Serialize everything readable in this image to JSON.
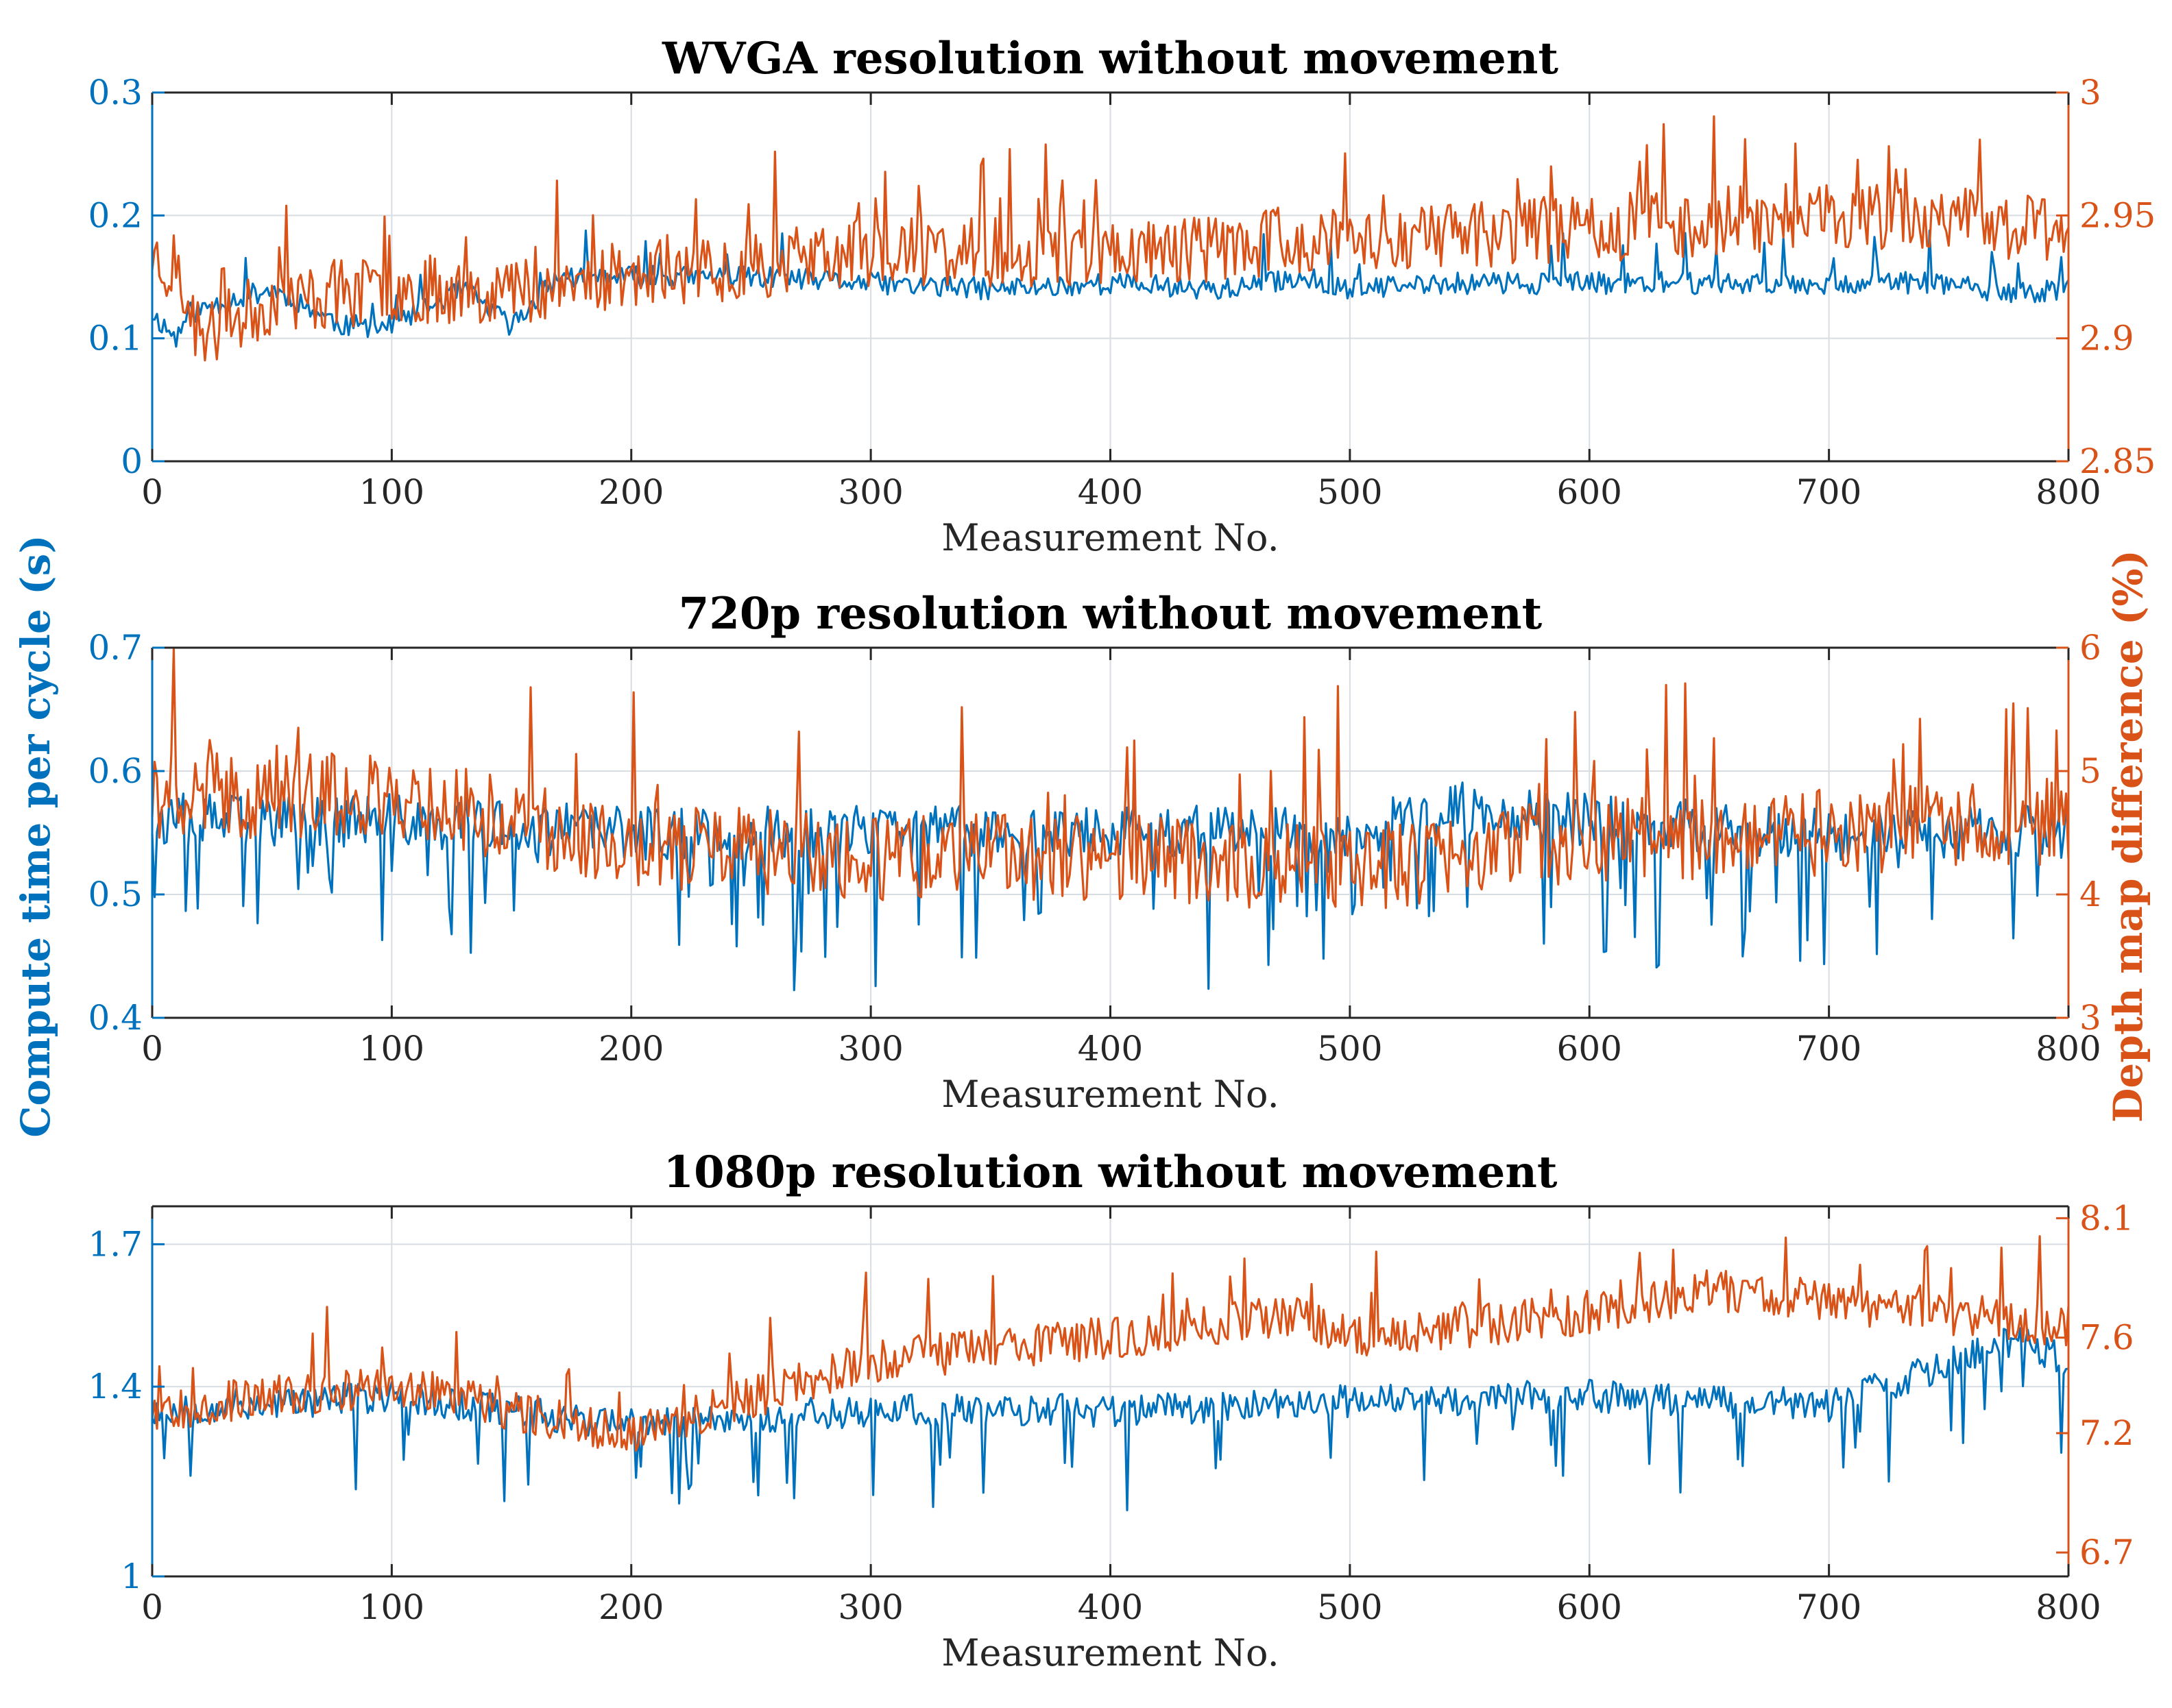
{
  "colors": {
    "left": "#0072BD",
    "right": "#D95319",
    "axis": "#262626",
    "grid": "#d7dde3",
    "title": "#000000"
  },
  "shared": {
    "ylabel_left": "Compute time per cycle (s)",
    "ylabel_right": "Depth map difference (%)"
  },
  "chart_data": [
    {
      "type": "line",
      "title": "WVGA resolution without movement",
      "xlabel": "Measurement No.",
      "xlim": [
        0,
        800
      ],
      "x_ticks": [
        0,
        100,
        200,
        300,
        400,
        500,
        600,
        700,
        800
      ],
      "y_left_lim": [
        0,
        0.3
      ],
      "y_left_ticks": [
        0,
        0.1,
        0.2,
        0.3
      ],
      "y_right_lim": [
        2.85,
        3.0
      ],
      "y_right_ticks": [
        2.85,
        2.9,
        2.95,
        3.0
      ],
      "grid": true,
      "series": [
        {
          "axis": "left",
          "anchors_x": [
            0,
            10,
            15,
            30,
            50,
            80,
            100,
            130,
            150,
            170,
            200,
            250,
            300,
            350,
            400,
            450,
            480,
            500,
            550,
            600,
            700,
            750,
            770,
            800
          ],
          "anchors_y": [
            0.12,
            0.1,
            0.12,
            0.13,
            0.14,
            0.11,
            0.11,
            0.14,
            0.11,
            0.15,
            0.15,
            0.15,
            0.145,
            0.14,
            0.145,
            0.14,
            0.15,
            0.14,
            0.145,
            0.145,
            0.145,
            0.145,
            0.135,
            0.14
          ],
          "noise": 0.009,
          "spikes": 0.04,
          "spike_rate": 0.03,
          "seed": 11
        },
        {
          "axis": "right",
          "anchors_x": [
            0,
            10,
            20,
            50,
            100,
            150,
            200,
            250,
            300,
            400,
            500,
            600,
            700,
            800
          ],
          "anchors_y": [
            2.935,
            2.925,
            2.9,
            2.915,
            2.92,
            2.92,
            2.925,
            2.93,
            2.935,
            2.935,
            2.94,
            2.945,
            2.95,
            2.945
          ],
          "noise": 0.014,
          "spikes": 0.035,
          "spike_rate": 0.06,
          "seed": 23
        }
      ]
    },
    {
      "type": "line",
      "title": "720p resolution without movement",
      "xlabel": "Measurement No.",
      "xlim": [
        0,
        800
      ],
      "x_ticks": [
        0,
        100,
        200,
        300,
        400,
        500,
        600,
        700,
        800
      ],
      "y_left_lim": [
        0.4,
        0.7
      ],
      "y_left_ticks": [
        0.4,
        0.5,
        0.6,
        0.7
      ],
      "y_right_lim": [
        3,
        6
      ],
      "y_right_ticks": [
        3,
        4,
        5,
        6
      ],
      "grid": true,
      "series": [
        {
          "axis": "left",
          "anchors_x": [
            0,
            100,
            200,
            300,
            400,
            500,
            550,
            600,
            700,
            800
          ],
          "anchors_y": [
            0.56,
            0.56,
            0.55,
            0.55,
            0.55,
            0.55,
            0.57,
            0.56,
            0.55,
            0.55
          ],
          "noise": 0.022,
          "spikes": -0.11,
          "spike_rate": 0.09,
          "seed": 37
        },
        {
          "axis": "right",
          "anchors_x": [
            0,
            100,
            200,
            300,
            400,
            500,
            600,
            700,
            800
          ],
          "anchors_y": [
            4.8,
            4.8,
            4.4,
            4.3,
            4.3,
            4.2,
            4.45,
            4.5,
            4.6
          ],
          "noise": 0.35,
          "spikes": 1.2,
          "spike_rate": 0.05,
          "seed": 41
        }
      ]
    },
    {
      "type": "line",
      "title": "1080p resolution without movement",
      "xlabel": "Measurement No.",
      "xlim": [
        0,
        800
      ],
      "x_ticks": [
        0,
        100,
        200,
        300,
        400,
        500,
        600,
        700,
        800
      ],
      "y_left_lim": [
        1,
        1.78
      ],
      "y_left_ticks": [
        1,
        1.4,
        1.7
      ],
      "y_right_lim": [
        6.6,
        8.15
      ],
      "y_right_ticks": [
        6.7,
        7.2,
        7.6,
        8.1
      ],
      "grid": true,
      "series": [
        {
          "axis": "left",
          "anchors_x": [
            0,
            100,
            200,
            300,
            400,
            500,
            600,
            700,
            780,
            800
          ],
          "anchors_y": [
            1.35,
            1.38,
            1.32,
            1.35,
            1.35,
            1.37,
            1.38,
            1.36,
            1.5,
            1.45
          ],
          "noise": 0.035,
          "spikes": -0.2,
          "spike_rate": 0.08,
          "seed": 53
        },
        {
          "axis": "right",
          "anchors_x": [
            0,
            100,
            200,
            300,
            400,
            480,
            500,
            600,
            650,
            700,
            800
          ],
          "anchors_y": [
            7.3,
            7.4,
            7.2,
            7.5,
            7.6,
            7.7,
            7.6,
            7.7,
            7.8,
            7.75,
            7.65
          ],
          "noise": 0.09,
          "spikes": 0.3,
          "spike_rate": 0.05,
          "seed": 67
        }
      ]
    }
  ]
}
